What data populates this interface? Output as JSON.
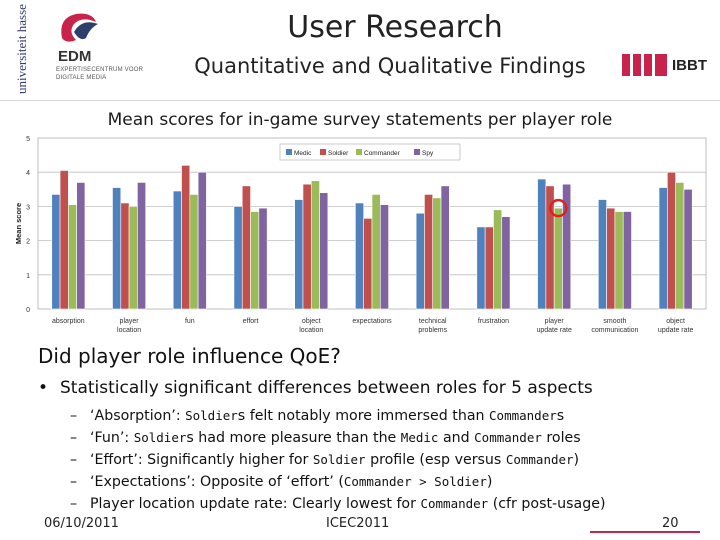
{
  "header": {
    "title": "User Research",
    "subtitle": "Quantitative and Qualitative Findings",
    "university_logo_text": "universiteit hasselt",
    "edm_logo_name": "EDM",
    "edm_logo_sub": "EXPERTISECENTRUM VOOR DIGITALE MEDIA",
    "ibbt_logo_text": "IBBT",
    "colors": {
      "ibbt_accent": "#c8234a",
      "edm_red": "#c8234a"
    }
  },
  "chart_data": {
    "type": "bar",
    "title": "Mean scores for in-game survey statements per player role",
    "xlabel": "",
    "ylabel": "Mean score",
    "ylim": [
      0,
      5
    ],
    "yticks": [
      0,
      1,
      2,
      3,
      4,
      5
    ],
    "grid": true,
    "legend_position": "top-right",
    "categories": [
      "absorption",
      "player location",
      "fun",
      "effort",
      "object location",
      "expectations",
      "technical problems",
      "frustration",
      "player update rate",
      "smooth communication",
      "object update rate"
    ],
    "series": [
      {
        "name": "Medic",
        "color": "#4f81bd",
        "values": [
          3.35,
          3.55,
          3.45,
          3.0,
          3.2,
          3.1,
          2.8,
          2.4,
          3.8,
          3.2,
          3.55
        ]
      },
      {
        "name": "Soldier",
        "color": "#c0504d",
        "values": [
          4.05,
          3.1,
          4.2,
          3.6,
          3.65,
          2.65,
          3.35,
          2.4,
          3.6,
          2.95,
          4.0
        ]
      },
      {
        "name": "Commander",
        "color": "#9bbb59",
        "values": [
          3.05,
          3.0,
          3.35,
          2.85,
          3.75,
          3.35,
          3.25,
          2.9,
          2.95,
          2.85,
          3.7
        ]
      },
      {
        "name": "Spy",
        "color": "#8064a2",
        "values": [
          3.7,
          3.7,
          4.0,
          2.95,
          3.4,
          3.05,
          3.6,
          2.7,
          3.65,
          2.85,
          3.5
        ]
      }
    ],
    "annotation": {
      "type": "circle",
      "category": "player update rate",
      "series": "Commander",
      "color": "#e02020"
    }
  },
  "content": {
    "question": "Did player role influence QoE?",
    "bullet": "Statistically significant differences between roles for 5 aspects",
    "subbullets": [
      {
        "parts": [
          {
            "t": "‘Absorption’: "
          },
          {
            "t": "Soldier",
            "mono": true
          },
          {
            "t": "s felt notably more immersed than "
          },
          {
            "t": "Commander",
            "mono": true
          },
          {
            "t": "s"
          }
        ]
      },
      {
        "parts": [
          {
            "t": "‘Fun’: "
          },
          {
            "t": "Soldier",
            "mono": true
          },
          {
            "t": "s had more pleasure than the "
          },
          {
            "t": "Medic",
            "mono": true
          },
          {
            "t": " and "
          },
          {
            "t": "Commander",
            "mono": true
          },
          {
            "t": " roles"
          }
        ]
      },
      {
        "parts": [
          {
            "t": "‘Effort’: Significantly higher for "
          },
          {
            "t": "Soldier",
            "mono": true
          },
          {
            "t": " profile (esp versus "
          },
          {
            "t": "Commander",
            "mono": true
          },
          {
            "t": ")"
          }
        ]
      },
      {
        "parts": [
          {
            "t": "‘Expectations’: Opposite of ‘effort’ ("
          },
          {
            "t": "Commander > Soldier",
            "mono": true
          },
          {
            "t": ")"
          }
        ]
      },
      {
        "parts": [
          {
            "t": "Player location update rate: Clearly lowest for "
          },
          {
            "t": "Commander",
            "mono": true
          },
          {
            "t": " (cfr post-usage)"
          }
        ]
      }
    ]
  },
  "footer": {
    "date": "06/10/2011",
    "conference": "ICEC2011",
    "page": "20"
  }
}
